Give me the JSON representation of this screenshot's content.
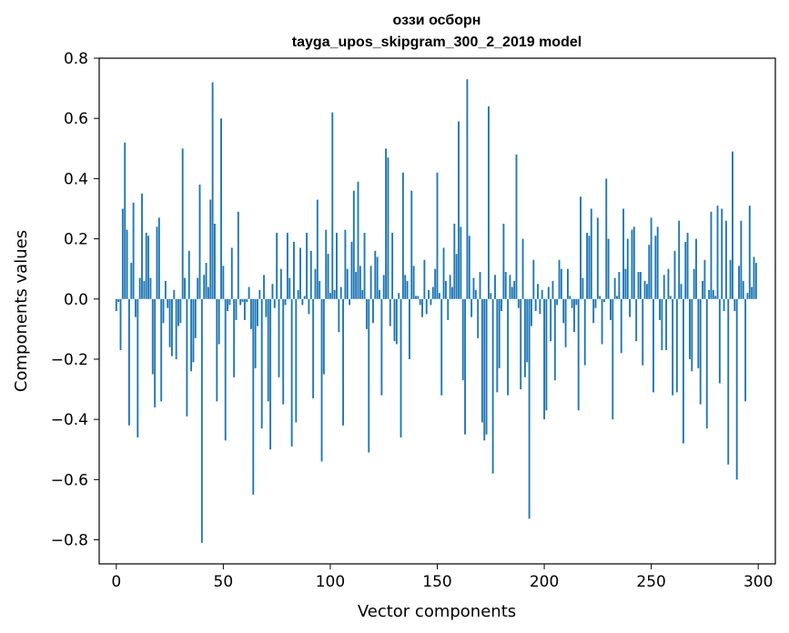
{
  "chart_data": {
    "type": "bar",
    "title_line1": "оззи осборн",
    "title_line2": "tayga_upos_skipgram_300_2_2019 model",
    "xlabel": "Vector components",
    "ylabel": "Components values",
    "xlim": [
      -8,
      308
    ],
    "ylim": [
      -0.88,
      0.8
    ],
    "xticks": [
      0,
      50,
      100,
      150,
      200,
      250,
      300
    ],
    "yticks": [
      -0.8,
      -0.6,
      -0.4,
      -0.2,
      0.0,
      0.2,
      0.4,
      0.6,
      0.8
    ],
    "ytick_labels": [
      "−0.8",
      "−0.6",
      "−0.4",
      "−0.2",
      "0.0",
      "0.2",
      "0.4",
      "0.6",
      "0.8"
    ],
    "xtick_labels": [
      "0",
      "50",
      "100",
      "150",
      "200",
      "250",
      "300"
    ],
    "bar_color": "#1f77b4",
    "grid": false,
    "x": [
      0,
      1,
      2,
      3,
      4,
      5,
      6,
      7,
      8,
      9,
      10,
      11,
      12,
      13,
      14,
      15,
      16,
      17,
      18,
      19,
      20,
      21,
      22,
      23,
      24,
      25,
      26,
      27,
      28,
      29,
      30,
      31,
      32,
      33,
      34,
      35,
      36,
      37,
      38,
      39,
      40,
      41,
      42,
      43,
      44,
      45,
      46,
      47,
      48,
      49,
      50,
      51,
      52,
      53,
      54,
      55,
      56,
      57,
      58,
      59,
      60,
      61,
      62,
      63,
      64,
      65,
      66,
      67,
      68,
      69,
      70,
      71,
      72,
      73,
      74,
      75,
      76,
      77,
      78,
      79,
      80,
      81,
      82,
      83,
      84,
      85,
      86,
      87,
      88,
      89,
      90,
      91,
      92,
      93,
      94,
      95,
      96,
      97,
      98,
      99,
      100,
      101,
      102,
      103,
      104,
      105,
      106,
      107,
      108,
      109,
      110,
      111,
      112,
      113,
      114,
      115,
      116,
      117,
      118,
      119,
      120,
      121,
      122,
      123,
      124,
      125,
      126,
      127,
      128,
      129,
      130,
      131,
      132,
      133,
      134,
      135,
      136,
      137,
      138,
      139,
      140,
      141,
      142,
      143,
      144,
      145,
      146,
      147,
      148,
      149,
      150,
      151,
      152,
      153,
      154,
      155,
      156,
      157,
      158,
      159,
      160,
      161,
      162,
      163,
      164,
      165,
      166,
      167,
      168,
      169,
      170,
      171,
      172,
      173,
      174,
      175,
      176,
      177,
      178,
      179,
      180,
      181,
      182,
      183,
      184,
      185,
      186,
      187,
      188,
      189,
      190,
      191,
      192,
      193,
      194,
      195,
      196,
      197,
      198,
      199,
      200,
      201,
      202,
      203,
      204,
      205,
      206,
      207,
      208,
      209,
      210,
      211,
      212,
      213,
      214,
      215,
      216,
      217,
      218,
      219,
      220,
      221,
      222,
      223,
      224,
      225,
      226,
      227,
      228,
      229,
      230,
      231,
      232,
      233,
      234,
      235,
      236,
      237,
      238,
      239,
      240,
      241,
      242,
      243,
      244,
      245,
      246,
      247,
      248,
      249,
      250,
      251,
      252,
      253,
      254,
      255,
      256,
      257,
      258,
      259,
      260,
      261,
      262,
      263,
      264,
      265,
      266,
      267,
      268,
      269,
      270,
      271,
      272,
      273,
      274,
      275,
      276,
      277,
      278,
      279,
      280,
      281,
      282,
      283,
      284,
      285,
      286,
      287,
      288,
      289,
      290,
      291,
      292,
      293,
      294,
      295,
      296,
      297,
      298,
      299
    ],
    "values": [
      -0.04,
      -0.01,
      -0.17,
      0.3,
      0.52,
      0.23,
      -0.42,
      0.12,
      0.32,
      -0.06,
      -0.46,
      0.07,
      0.35,
      0.06,
      0.22,
      0.21,
      0.07,
      -0.25,
      -0.36,
      0.24,
      0.27,
      -0.34,
      -0.08,
      0.06,
      -0.03,
      -0.16,
      -0.19,
      0.03,
      -0.2,
      -0.09,
      -0.08,
      0.5,
      0.07,
      -0.39,
      0.16,
      -0.24,
      -0.21,
      -0.13,
      0.07,
      0.38,
      -0.81,
      0.08,
      0.12,
      0.04,
      0.33,
      0.72,
      0.25,
      -0.34,
      -0.15,
      0.6,
      0.11,
      -0.47,
      -0.04,
      -0.02,
      0.17,
      -0.26,
      -0.07,
      0.29,
      -0.02,
      -0.01,
      -0.07,
      -0.01,
      0.04,
      -0.1,
      -0.65,
      -0.23,
      -0.09,
      0.03,
      -0.43,
      0.08,
      -0.06,
      -0.34,
      -0.5,
      0.05,
      -0.03,
      0.22,
      -0.26,
      0.1,
      -0.35,
      -0.02,
      0.22,
      0.07,
      -0.49,
      0.19,
      -0.41,
      0.03,
      0.17,
      -0.02,
      0.01,
      0.22,
      -0.05,
      0.16,
      -0.33,
      0.1,
      0.33,
      0.06,
      -0.54,
      -0.25,
      0.23,
      0.15,
      0.02,
      0.62,
      0.03,
      0.22,
      -0.11,
      0.04,
      -0.42,
      0.23,
      0.1,
      -0.02,
      0.19,
      0.36,
      0.09,
      0.39,
      0.11,
      0.03,
      0.22,
      -0.1,
      -0.51,
      0.11,
      -0.08,
      0.16,
      0.14,
      0.03,
      -0.32,
      0.08,
      0.5,
      0.47,
      -0.09,
      0.22,
      -0.14,
      -0.15,
      0.02,
      -0.46,
      0.42,
      0.08,
      0.06,
      -0.2,
      0.36,
      0.11,
      0.01,
      0.01,
      -0.02,
      -0.06,
      0.13,
      -0.05,
      0.03,
      -0.02,
      0.04,
      0.1,
      0.42,
      0.02,
      -0.32,
      0.17,
      0.06,
      -0.07,
      0.08,
      0.04,
      0.25,
      0.15,
      0.59,
      0.24,
      -0.27,
      -0.45,
      0.73,
      0.21,
      -0.06,
      0.07,
      0.03,
      -0.13,
      0.09,
      -0.41,
      -0.47,
      -0.45,
      0.64,
      0.02,
      -0.58,
      0.08,
      -0.31,
      -0.23,
      -0.04,
      0.25,
      0.09,
      -0.32,
      0.08,
      0.04,
      0.06,
      0.48,
      -0.03,
      -0.3,
      0.2,
      -0.26,
      -0.21,
      -0.73,
      -0.09,
      0.13,
      -0.04,
      0.05,
      -0.05,
      0.03,
      -0.4,
      -0.37,
      0.04,
      -0.14,
      0.06,
      -0.27,
      -0.02,
      0.13,
      0.1,
      -0.08,
      -0.16,
      0.1,
      0.01,
      -0.03,
      -0.11,
      -0.02,
      -0.37,
      0.34,
      0.07,
      -0.22,
      0.22,
      0.21,
      0.3,
      -0.08,
      -0.03,
      0.27,
      0.01,
      -0.15,
      -0.01,
      0.4,
      0.2,
      -0.07,
      -0.4,
      0.07,
      0.01,
      0.09,
      -0.18,
      0.3,
      0.1,
      0.2,
      -0.06,
      0.23,
      0.24,
      -0.14,
      0.09,
      0.09,
      -0.22,
      0.06,
      0.05,
      0.18,
      0.27,
      -0.31,
      0.21,
      0.24,
      -0.07,
      -0.17,
      0.08,
      -0.17,
      0.1,
      0.01,
      -0.32,
      0.16,
      -0.31,
      0.26,
      0.05,
      -0.48,
      0.19,
      0.22,
      -0.2,
      -0.24,
      0.1,
      0.2,
      -0.23,
      -0.35,
      0.06,
      0.13,
      -0.43,
      0.03,
      0.29,
      0.03,
      0.01,
      0.31,
      -0.28,
      0.3,
      -0.04,
      0.26,
      -0.55,
      0.13,
      0.49,
      -0.04,
      -0.6,
      0.11,
      0.26,
      0.06,
      -0.34,
      0.02,
      0.31,
      0.04,
      0.14,
      0.12
    ]
  }
}
